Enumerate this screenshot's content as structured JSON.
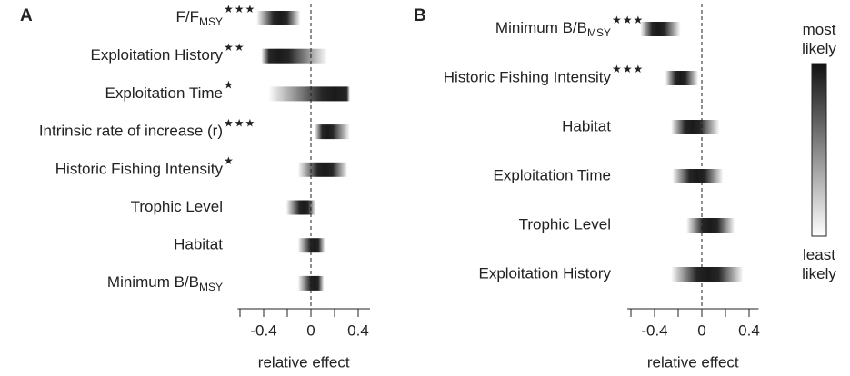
{
  "chart_data": [
    {
      "type": "gradient-interval",
      "panel_label": "A",
      "categories": [
        {
          "text": "F/F",
          "sub": "MSY"
        },
        "Exploitation History",
        "Exploitation Time",
        "Intrinsic rate of increase (r)",
        "Historic Fishing Intensity",
        "Trophic Level",
        "Habitat",
        {
          "text": "Minimum B/B",
          "sub": "MSY"
        }
      ],
      "significance": [
        "★★★",
        "★★",
        "★",
        "★★★",
        "★",
        null,
        null,
        null
      ],
      "values": [
        -0.26,
        -0.27,
        0.2,
        0.14,
        0.12,
        -0.06,
        0.03,
        0.03
      ],
      "lower": [
        -0.46,
        -0.42,
        -0.36,
        0.03,
        -0.11,
        -0.21,
        -0.11,
        -0.11
      ],
      "upper": [
        -0.09,
        0.14,
        0.33,
        0.33,
        0.31,
        0.04,
        0.12,
        0.11
      ],
      "color": "#1a1a1a",
      "xlim": [
        -0.62,
        0.5
      ],
      "xticks": [
        -0.4,
        0,
        0.4
      ],
      "minor_xticks": [
        -0.6,
        -0.2,
        0.2
      ],
      "xlabel": "relative effect"
    },
    {
      "type": "gradient-interval",
      "panel_label": "B",
      "categories": [
        {
          "text": "Minimum B/B",
          "sub": "MSY"
        },
        "Historic Fishing Intensity",
        "Habitat",
        "Exploitation Time",
        "Trophic Level",
        "Exploitation History"
      ],
      "significance": [
        "★★★",
        "★★★",
        null,
        null,
        null,
        null
      ],
      "values": [
        -0.37,
        -0.18,
        -0.08,
        -0.04,
        0.07,
        0.05
      ],
      "lower": [
        -0.52,
        -0.31,
        -0.26,
        -0.25,
        -0.13,
        -0.26
      ],
      "upper": [
        -0.18,
        -0.03,
        0.15,
        0.18,
        0.28,
        0.35
      ],
      "color": "#1a1a1a",
      "xlim": [
        -0.63,
        0.48
      ],
      "xticks": [
        -0.4,
        0,
        0.4
      ],
      "minor_xticks": [
        -0.6,
        -0.2,
        0.2
      ],
      "xlabel": "relative effect",
      "colorbar": {
        "top_label": "most likely",
        "bottom_label": "least likely"
      }
    }
  ]
}
